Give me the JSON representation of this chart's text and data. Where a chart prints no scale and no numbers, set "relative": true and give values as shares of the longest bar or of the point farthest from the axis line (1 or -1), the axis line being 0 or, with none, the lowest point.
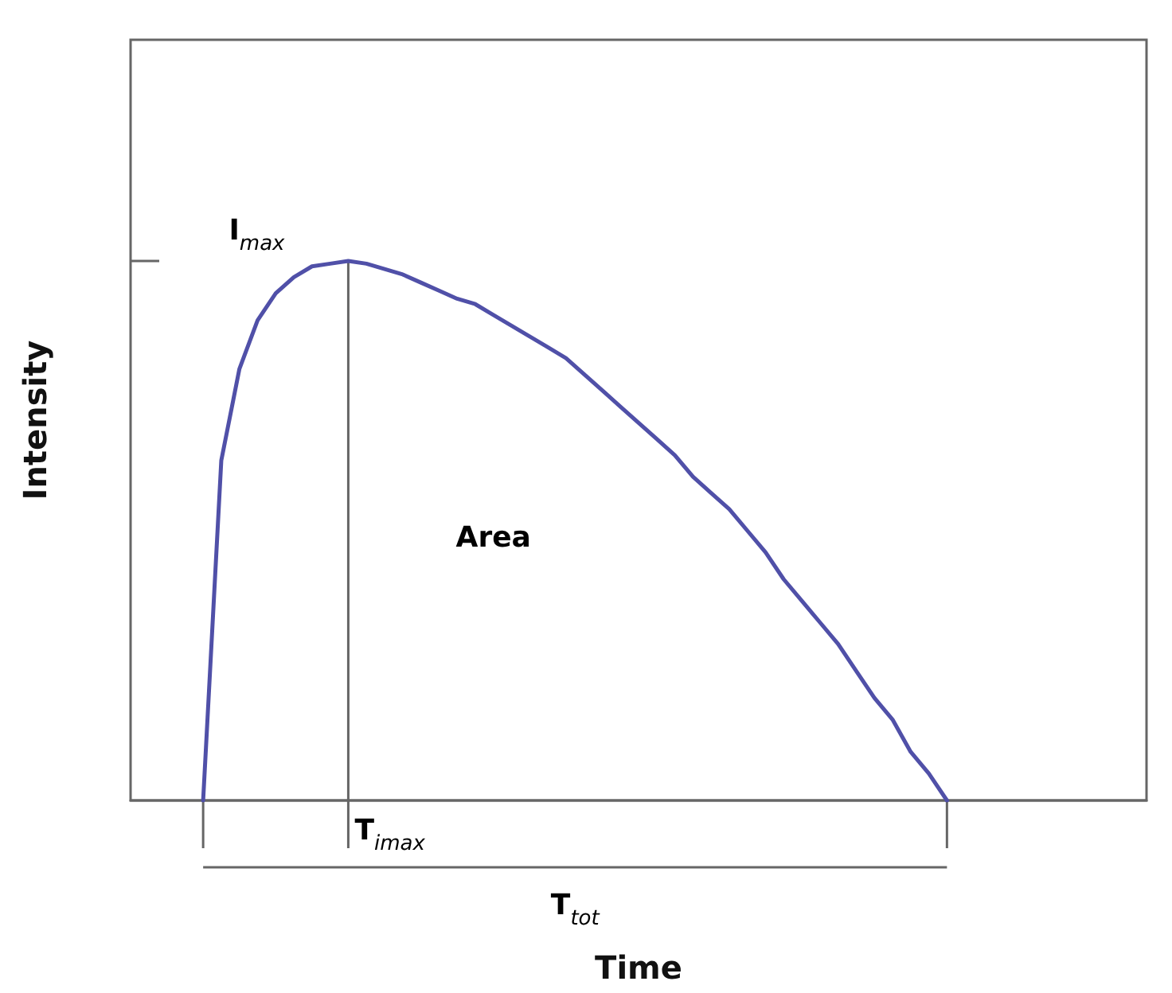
{
  "chart_data": {
    "type": "line",
    "relative": true,
    "xlabel": "Time",
    "ylabel": "Intensity",
    "marker": "none",
    "categories": [
      null,
      null,
      null,
      null,
      null,
      null,
      null,
      null,
      null,
      null,
      null,
      null,
      null,
      null,
      null,
      null,
      null,
      null,
      null,
      null,
      null,
      null,
      null,
      null,
      null,
      null,
      null,
      null,
      null,
      null,
      null,
      null,
      null,
      null,
      null,
      null,
      null,
      null,
      null,
      null,
      null,
      null,
      null,
      null,
      null,
      null,
      null,
      null,
      null,
      null,
      null,
      null,
      null,
      null,
      null,
      null,
      null
    ],
    "series": [
      {
        "color": "#5050a8",
        "values": [
          null,
          null,
          null,
          null,
          0,
          0.63,
          0.8,
          0.89,
          0.94,
          0.97,
          0.99,
          0.995,
          1,
          0.995,
          0.985,
          0.975,
          0.96,
          0.945,
          0.93,
          0.92,
          0.9,
          0.88,
          0.86,
          0.84,
          0.82,
          0.79,
          0.76,
          0.73,
          0.7,
          0.67,
          0.64,
          0.6,
          0.57,
          0.54,
          0.5,
          0.46,
          0.41,
          0.37,
          0.33,
          0.29,
          0.24,
          0.19,
          0.15,
          0.09,
          0.05,
          0,
          null,
          null,
          null,
          null,
          null,
          null,
          null,
          null,
          null,
          null,
          null
        ]
      }
    ],
    "annotations": [
      "I$_{max}$",
      "Area",
      "T$_{imax}$",
      "T$_{tot}$"
    ]
  }
}
